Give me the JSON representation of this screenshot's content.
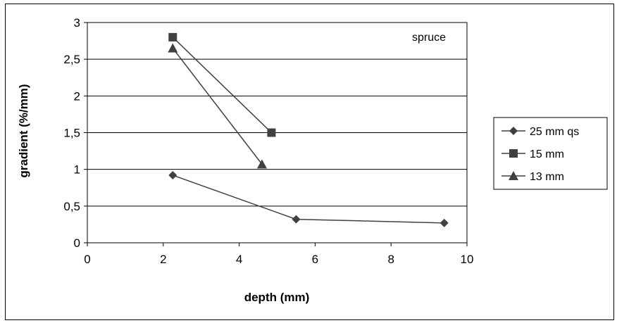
{
  "chart_data": {
    "type": "line",
    "title": "",
    "annotation": "spruce",
    "xlabel": "depth (mm)",
    "ylabel": "gradient (%/mm)",
    "xlim": [
      0,
      10
    ],
    "ylim": [
      0,
      3
    ],
    "xticks": [
      0,
      2,
      4,
      6,
      8,
      10
    ],
    "xtick_labels": [
      "0",
      "2",
      "4",
      "6",
      "8",
      "10"
    ],
    "yticks": [
      0,
      0.5,
      1,
      1.5,
      2,
      2.5,
      3
    ],
    "ytick_labels": [
      "0",
      "0,5",
      "1",
      "1,5",
      "2",
      "2,5",
      "3"
    ],
    "grid": "horizontal",
    "legend_position": "right",
    "series": [
      {
        "name": "25 mm qs",
        "marker": "diamond",
        "color": "#404040",
        "x": [
          2.25,
          5.5,
          9.4
        ],
        "y": [
          0.92,
          0.32,
          0.27
        ]
      },
      {
        "name": "15 mm",
        "marker": "square",
        "color": "#404040",
        "x": [
          2.25,
          4.85
        ],
        "y": [
          2.8,
          1.5
        ]
      },
      {
        "name": "13 mm",
        "marker": "triangle",
        "color": "#404040",
        "x": [
          2.25,
          4.6
        ],
        "y": [
          2.65,
          1.07
        ]
      }
    ]
  }
}
